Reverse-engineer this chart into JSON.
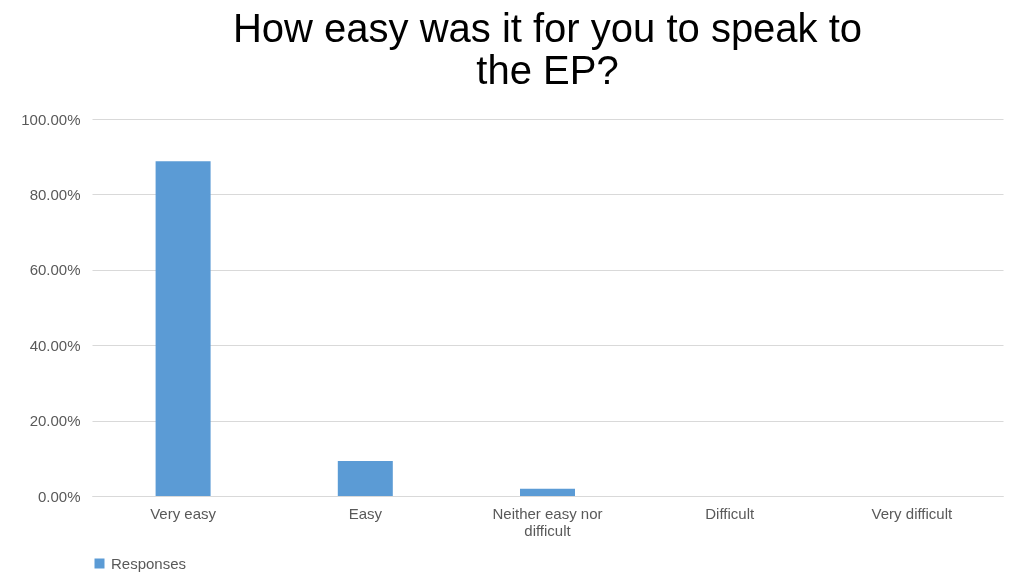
{
  "chart_data": {
    "type": "bar",
    "title": "How easy was it for you to speak to the EP?",
    "categories": [
      "Very easy",
      "Easy",
      "Neither easy nor difficult",
      "Difficult",
      "Very difficult"
    ],
    "series": [
      {
        "name": "Responses",
        "color": "#5b9bd5",
        "values": [
          88.8,
          9.3,
          1.9,
          0,
          0
        ]
      }
    ],
    "ylim": [
      0,
      100
    ],
    "yticks": [
      {
        "value": 0,
        "label": "0.00%"
      },
      {
        "value": 20,
        "label": "20.00%"
      },
      {
        "value": 40,
        "label": "40.00%"
      },
      {
        "value": 60,
        "label": "60.00%"
      },
      {
        "value": 80,
        "label": "80.00%"
      },
      {
        "value": 100,
        "label": "100.00%"
      }
    ],
    "grid": "y",
    "legend": "bottom"
  }
}
